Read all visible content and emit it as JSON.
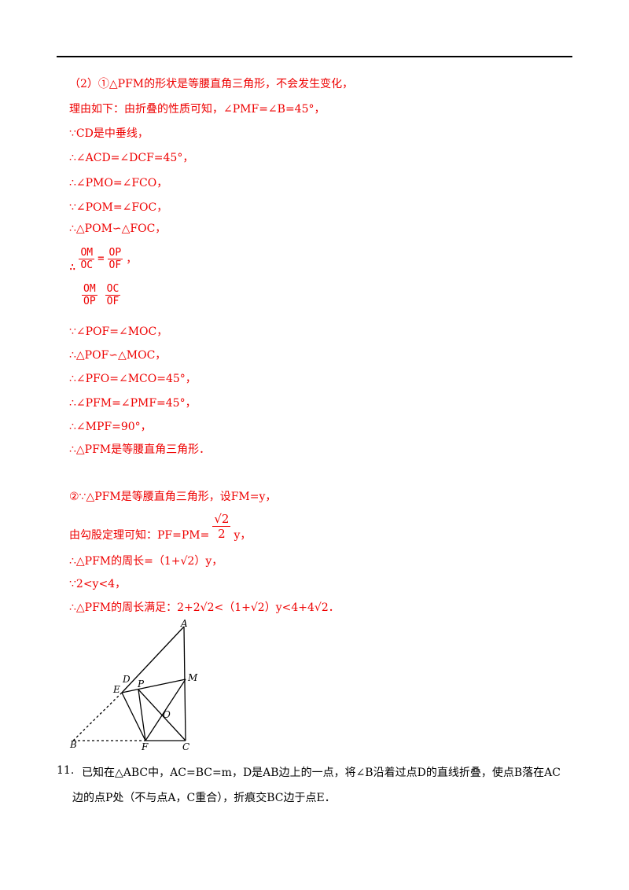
{
  "part2": {
    "s1": [
      "（2）①△PFM的形状是等腰直角三角形，不会发生变化，",
      "理由如下：由折叠的性质可知，∠PMF=∠B=45°，",
      "∵CD是中垂线，",
      "∴∠ACD=∠DCF=45°，",
      "∴∠PMO=∠FCO，",
      "∵∠POM=∠FOC，",
      "∴△POM∽△FOC，"
    ],
    "frac1": {
      "prefix": "∴",
      "num1": "OM",
      "den1": "OC",
      "eq": "=",
      "num2": "OP",
      "den2": "OF",
      "suffix": "，"
    },
    "frac2": {
      "num1": "OM",
      "den1": "OP",
      "num2": "OC",
      "den2": "OF"
    },
    "s2": [
      "∵∠POF=∠MOC，",
      "∴△POF∽△MOC，",
      "∴∠PFO=∠MCO=45°，",
      "∴∠PFM=∠PMF=45°，",
      "∴∠MPF=90°，",
      "∴△PFM是等腰直角三角形．"
    ],
    "s3first": "②∵△PFM是等腰直角三角形，设FM=y，",
    "pyth": {
      "text": "由勾股定理可知：PF=PM=",
      "num": "√2",
      "den": "2",
      "suffix": "y，"
    },
    "s3": [
      "∴△PFM的周长=（1+√2）y，",
      "∵2<y<4，",
      "∴△PFM的周长满足：2+2√2<（1+√2）y<4+4√2．"
    ]
  },
  "figure": {
    "labels": [
      "A",
      "D",
      "M",
      "E",
      "P",
      "O",
      "B",
      "F",
      "C"
    ]
  },
  "problem11": {
    "number": "11.",
    "lines": [
      "已知在△ABC中，AC=BC=m，D是AB边上的一点，将∠B沿着过点D的直线折叠，使点B落在AC",
      "边的点P处（不与点A，C重合），折痕交BC边于点E．"
    ]
  }
}
